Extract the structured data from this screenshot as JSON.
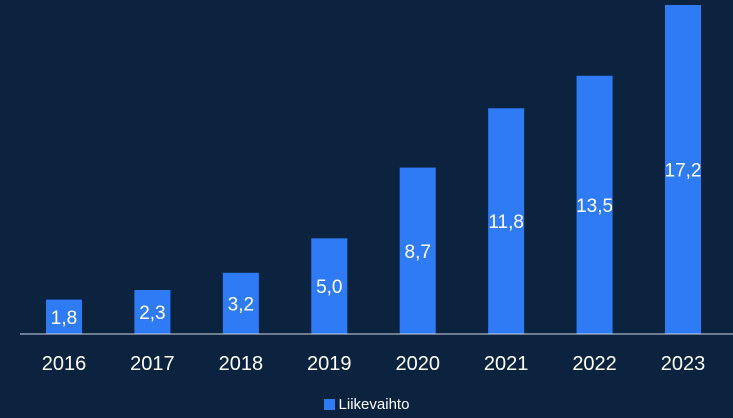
{
  "colors": {
    "background": "#0c2340",
    "bar": "#2f7bf5",
    "axis": "#d0d6e0",
    "text": "#ffffff"
  },
  "chart_data": {
    "type": "bar",
    "categories": [
      "2016",
      "2017",
      "2018",
      "2019",
      "2020",
      "2021",
      "2022",
      "2023"
    ],
    "series": [
      {
        "name": "Liikevaihto",
        "values": [
          1.8,
          2.3,
          3.2,
          5.0,
          8.7,
          11.8,
          13.5,
          17.2
        ],
        "labels": [
          "1,8",
          "2,3",
          "3,2",
          "5,0",
          "8,7",
          "11,8",
          "13,5",
          "17,2"
        ]
      }
    ],
    "title": "",
    "xlabel": "",
    "ylabel": "",
    "ylim": [
      0,
      17.2
    ],
    "grid": false,
    "legend_position": "bottom"
  }
}
